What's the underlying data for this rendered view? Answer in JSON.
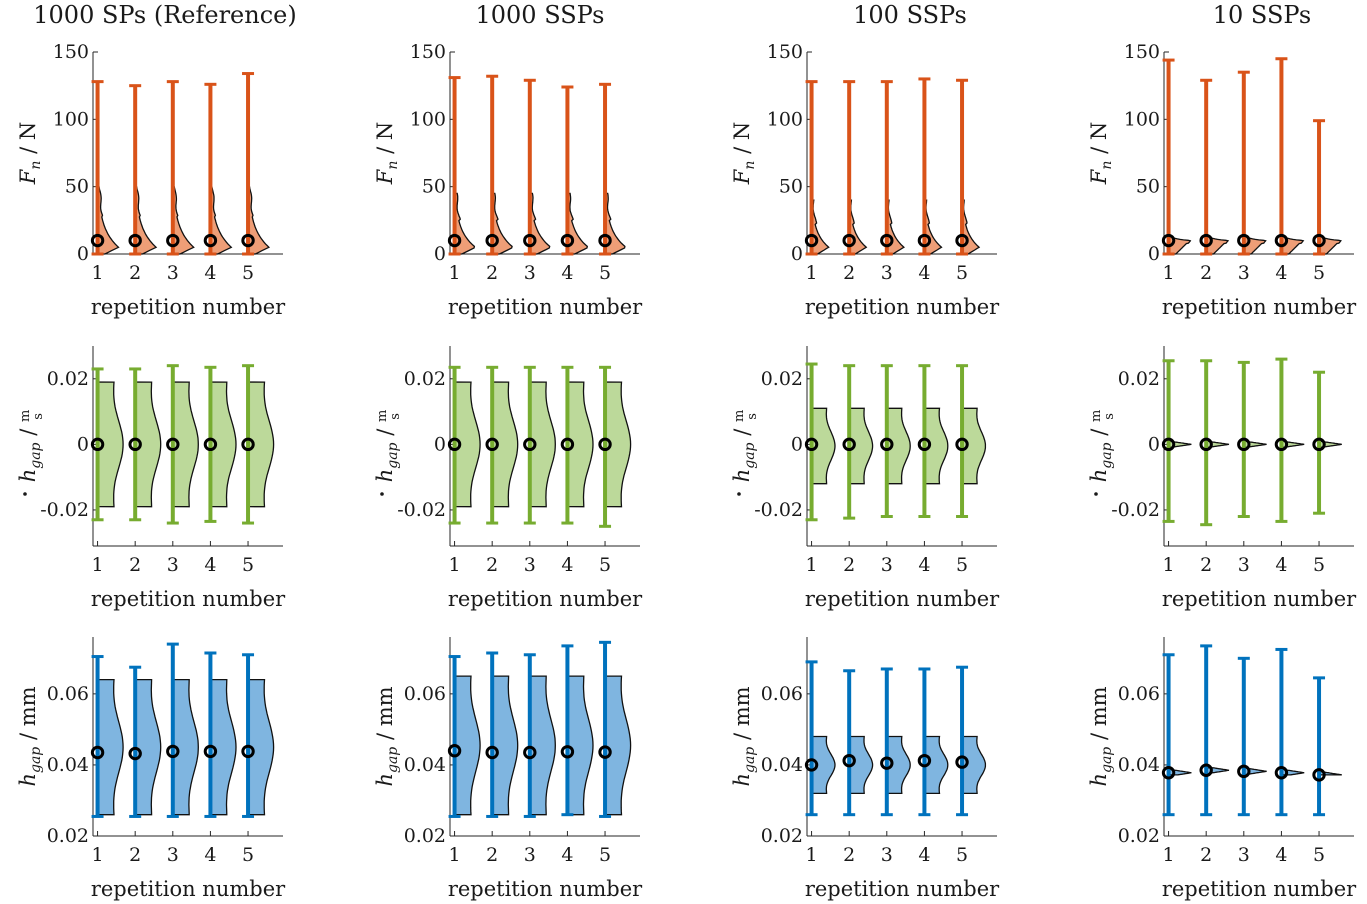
{
  "figure": {
    "columns": [
      {
        "title": "1000 SPs (Reference)"
      },
      {
        "title": "1000 SSPs"
      },
      {
        "title": "100 SSPs"
      },
      {
        "title": "10 SSPs"
      }
    ],
    "rows": [
      {
        "key": "fn",
        "ylabel_main": "F",
        "ylabel_sub": "n",
        "ylabel_unit": "N",
        "ylabel_sep": "/",
        "color": "#D95319",
        "fill": "#EE9E77"
      },
      {
        "key": "hdot",
        "ylabel_main": "h",
        "ylabel_sub": "gap",
        "ylabel_unit_num": "m",
        "ylabel_unit_den": "s",
        "ylabel_sep": "/",
        "color": "#77AC30",
        "fill": "#BCD99A"
      },
      {
        "key": "h",
        "ylabel_main": "h",
        "ylabel_sub": "gap",
        "ylabel_unit": "mm",
        "ylabel_sep": "/",
        "color": "#0072BD",
        "fill": "#7FB5E0"
      }
    ],
    "xlabel": "repetition number"
  },
  "chart_data": [
    {
      "type": "violin",
      "title": "1000 SPs (Reference)",
      "row": "fn",
      "xlabel": "repetition number",
      "ylabel": "F_n / N",
      "categories": [
        "1",
        "2",
        "3",
        "4",
        "5"
      ],
      "ylim": [
        0,
        150
      ],
      "yticks": [
        0,
        50,
        100,
        150
      ],
      "max": [
        128,
        125,
        128,
        126,
        134
      ],
      "min": [
        0,
        0,
        0,
        0,
        0
      ],
      "median": [
        10,
        10,
        10,
        10,
        10
      ],
      "density": {
        "peak_y": 5,
        "top_y": 50,
        "width": 0.55
      }
    },
    {
      "type": "violin",
      "title": "1000 SSPs",
      "row": "fn",
      "xlabel": "repetition number",
      "ylabel": "F_n / N",
      "categories": [
        "1",
        "2",
        "3",
        "4",
        "5"
      ],
      "ylim": [
        0,
        150
      ],
      "yticks": [
        0,
        50,
        100,
        150
      ],
      "max": [
        131,
        132,
        129,
        124,
        126
      ],
      "min": [
        0,
        0,
        0,
        0,
        0
      ],
      "median": [
        10,
        10,
        10,
        10,
        10
      ],
      "density": {
        "peak_y": 5,
        "top_y": 45,
        "width": 0.55
      }
    },
    {
      "type": "violin",
      "title": "100 SSPs",
      "row": "fn",
      "xlabel": "repetition number",
      "ylabel": "F_n / N",
      "categories": [
        "1",
        "2",
        "3",
        "4",
        "5"
      ],
      "ylim": [
        0,
        150
      ],
      "yticks": [
        0,
        50,
        100,
        150
      ],
      "max": [
        128,
        128,
        128,
        130,
        129
      ],
      "min": [
        0,
        0,
        0,
        0,
        0
      ],
      "median": [
        10,
        10,
        10,
        10,
        10
      ],
      "density": {
        "peak_y": 5,
        "top_y": 40,
        "width": 0.45
      }
    },
    {
      "type": "violin",
      "title": "10 SSPs",
      "row": "fn",
      "xlabel": "repetition number",
      "ylabel": "F_n / N",
      "categories": [
        "1",
        "2",
        "3",
        "4",
        "5"
      ],
      "ylim": [
        0,
        150
      ],
      "yticks": [
        0,
        50,
        100,
        150
      ],
      "max": [
        144,
        129,
        135,
        145,
        99
      ],
      "min": [
        0,
        0,
        0,
        0,
        0
      ],
      "median": [
        10,
        10,
        10,
        10,
        10
      ],
      "density": {
        "peak_y": 10,
        "top_y": 14,
        "width": 0.55
      }
    },
    {
      "type": "violin",
      "title": "1000 SPs (Reference)",
      "row": "hdot",
      "xlabel": "repetition number",
      "ylabel": "ḣ_gap / m/s",
      "categories": [
        "1",
        "2",
        "3",
        "4",
        "5"
      ],
      "ylim": [
        -0.031,
        0.03
      ],
      "yticks": [
        -0.02,
        0,
        0.02
      ],
      "ytick_labels": [
        "-0.02",
        "0",
        "0.02"
      ],
      "max": [
        0.023,
        0.023,
        0.024,
        0.0235,
        0.024
      ],
      "min": [
        -0.023,
        -0.023,
        -0.024,
        -0.0235,
        -0.024
      ],
      "median": [
        0.0,
        0.0,
        0.0,
        0.0,
        0.0
      ],
      "density": {
        "lo": -0.019,
        "hi": 0.019,
        "width": 0.6
      }
    },
    {
      "type": "violin",
      "title": "1000 SSPs",
      "row": "hdot",
      "xlabel": "repetition number",
      "ylabel": "ḣ_gap / m/s",
      "categories": [
        "1",
        "2",
        "3",
        "4",
        "5"
      ],
      "ylim": [
        -0.031,
        0.03
      ],
      "yticks": [
        -0.02,
        0,
        0.02
      ],
      "ytick_labels": [
        "-0.02",
        "0",
        "0.02"
      ],
      "max": [
        0.0235,
        0.0235,
        0.0235,
        0.0235,
        0.0235
      ],
      "min": [
        -0.024,
        -0.024,
        -0.024,
        -0.024,
        -0.025
      ],
      "median": [
        0.0,
        0.0,
        0.0,
        0.0,
        0.0
      ],
      "density": {
        "lo": -0.019,
        "hi": 0.019,
        "width": 0.6
      }
    },
    {
      "type": "violin",
      "title": "100 SSPs",
      "row": "hdot",
      "xlabel": "repetition number",
      "ylabel": "ḣ_gap / m/s",
      "categories": [
        "1",
        "2",
        "3",
        "4",
        "5"
      ],
      "ylim": [
        -0.031,
        0.03
      ],
      "yticks": [
        -0.02,
        0,
        0.02
      ],
      "ytick_labels": [
        "-0.02",
        "0",
        "0.02"
      ],
      "max": [
        0.0245,
        0.024,
        0.024,
        0.024,
        0.024
      ],
      "min": [
        -0.023,
        -0.0225,
        -0.022,
        -0.022,
        -0.022
      ],
      "median": [
        0.0,
        0.0,
        0.0,
        0.0,
        0.0
      ],
      "density": {
        "lo": -0.012,
        "hi": 0.011,
        "width": 0.55
      }
    },
    {
      "type": "violin",
      "title": "10 SSPs",
      "row": "hdot",
      "xlabel": "repetition number",
      "ylabel": "ḣ_gap / m/s",
      "categories": [
        "1",
        "2",
        "3",
        "4",
        "5"
      ],
      "ylim": [
        -0.031,
        0.03
      ],
      "yticks": [
        -0.02,
        0,
        0.02
      ],
      "ytick_labels": [
        "-0.02",
        "0",
        "0.02"
      ],
      "max": [
        0.0255,
        0.0255,
        0.025,
        0.026,
        0.022
      ],
      "min": [
        -0.0235,
        -0.0245,
        -0.022,
        -0.0235,
        -0.021
      ],
      "median": [
        0.0,
        0.0,
        0.0,
        0.0,
        0.0
      ],
      "density": {
        "lo": -0.001,
        "hi": 0.001,
        "width": 0.6
      }
    },
    {
      "type": "violin",
      "title": "1000 SPs (Reference)",
      "row": "h",
      "xlabel": "repetition number",
      "ylabel": "h_gap / mm",
      "categories": [
        "1",
        "2",
        "3",
        "4",
        "5"
      ],
      "ylim": [
        0.02,
        0.076
      ],
      "yticks": [
        0.02,
        0.04,
        0.06
      ],
      "ytick_labels": [
        "0.02",
        "0.04",
        "0.06"
      ],
      "max": [
        0.0705,
        0.0675,
        0.074,
        0.0715,
        0.071
      ],
      "min": [
        0.0255,
        0.0255,
        0.0255,
        0.0255,
        0.0255
      ],
      "median": [
        0.0435,
        0.0432,
        0.0438,
        0.0438,
        0.0438
      ],
      "density": {
        "lo": 0.026,
        "hi": 0.064,
        "width": 0.6
      }
    },
    {
      "type": "violin",
      "title": "1000 SSPs",
      "row": "h",
      "xlabel": "repetition number",
      "ylabel": "h_gap / mm",
      "categories": [
        "1",
        "2",
        "3",
        "4",
        "5"
      ],
      "ylim": [
        0.02,
        0.076
      ],
      "yticks": [
        0.02,
        0.04,
        0.06
      ],
      "ytick_labels": [
        "0.02",
        "0.04",
        "0.06"
      ],
      "max": [
        0.0705,
        0.0715,
        0.071,
        0.0735,
        0.0745
      ],
      "min": [
        0.0255,
        0.0255,
        0.0255,
        0.026,
        0.0255
      ],
      "median": [
        0.044,
        0.0435,
        0.0435,
        0.0437,
        0.0436
      ],
      "density": {
        "lo": 0.026,
        "hi": 0.065,
        "width": 0.6
      }
    },
    {
      "type": "violin",
      "title": "100 SSPs",
      "row": "h",
      "xlabel": "repetition number",
      "ylabel": "h_gap / mm",
      "categories": [
        "1",
        "2",
        "3",
        "4",
        "5"
      ],
      "ylim": [
        0.02,
        0.076
      ],
      "yticks": [
        0.02,
        0.04,
        0.06
      ],
      "ytick_labels": [
        "0.02",
        "0.04",
        "0.06"
      ],
      "max": [
        0.069,
        0.0665,
        0.067,
        0.067,
        0.0675
      ],
      "min": [
        0.026,
        0.026,
        0.026,
        0.026,
        0.026
      ],
      "median": [
        0.04,
        0.0412,
        0.0405,
        0.0412,
        0.0408
      ],
      "density": {
        "lo": 0.032,
        "hi": 0.048,
        "width": 0.55
      }
    },
    {
      "type": "violin",
      "title": "10 SSPs",
      "row": "h",
      "xlabel": "repetition number",
      "ylabel": "h_gap / mm",
      "categories": [
        "1",
        "2",
        "3",
        "4",
        "5"
      ],
      "ylim": [
        0.02,
        0.076
      ],
      "yticks": [
        0.02,
        0.04,
        0.06
      ],
      "ytick_labels": [
        "0.02",
        "0.04",
        "0.06"
      ],
      "max": [
        0.071,
        0.0735,
        0.07,
        0.0725,
        0.0645
      ],
      "min": [
        0.026,
        0.026,
        0.026,
        0.026,
        0.026
      ],
      "median": [
        0.0378,
        0.0385,
        0.0382,
        0.0378,
        0.0372
      ],
      "density": {
        "lo": 0.0372,
        "hi": 0.0392,
        "width": 0.6
      }
    }
  ]
}
